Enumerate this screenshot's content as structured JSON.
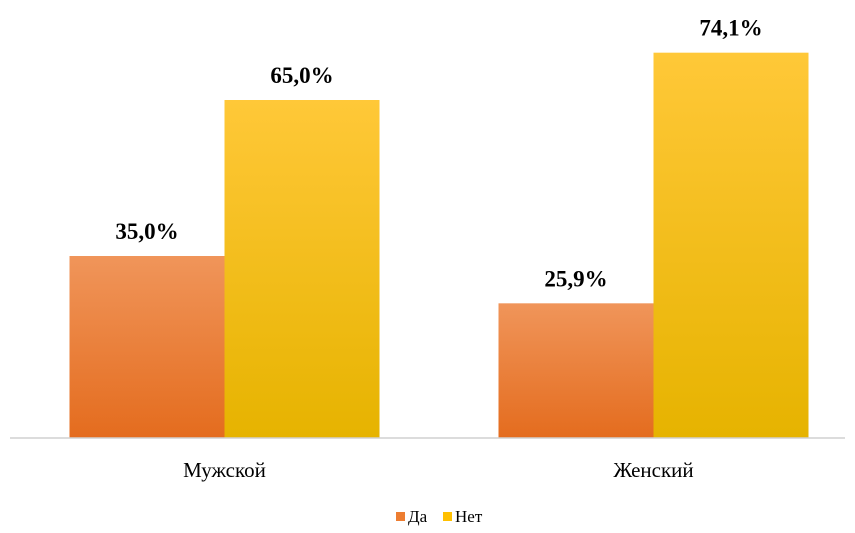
{
  "chart_data": {
    "type": "bar",
    "title": "",
    "xlabel": "",
    "ylabel": "",
    "ylim": [
      0,
      80
    ],
    "grid": false,
    "legend_position": "bottom",
    "categories": [
      "Мужской",
      "Женский"
    ],
    "series": [
      {
        "name": "Да",
        "values": [
          35.0,
          25.9
        ],
        "labels": [
          "35,0%",
          "25,9%"
        ],
        "color": "#ED7D31",
        "gradient": [
          "#F0955A",
          "#E46C1E"
        ]
      },
      {
        "name": "Нет",
        "values": [
          65.0,
          74.1
        ],
        "labels": [
          "65,0%",
          "74,1%"
        ],
        "color": "#FFC000",
        "gradient": [
          "#FFC838",
          "#E6B300"
        ]
      }
    ]
  }
}
